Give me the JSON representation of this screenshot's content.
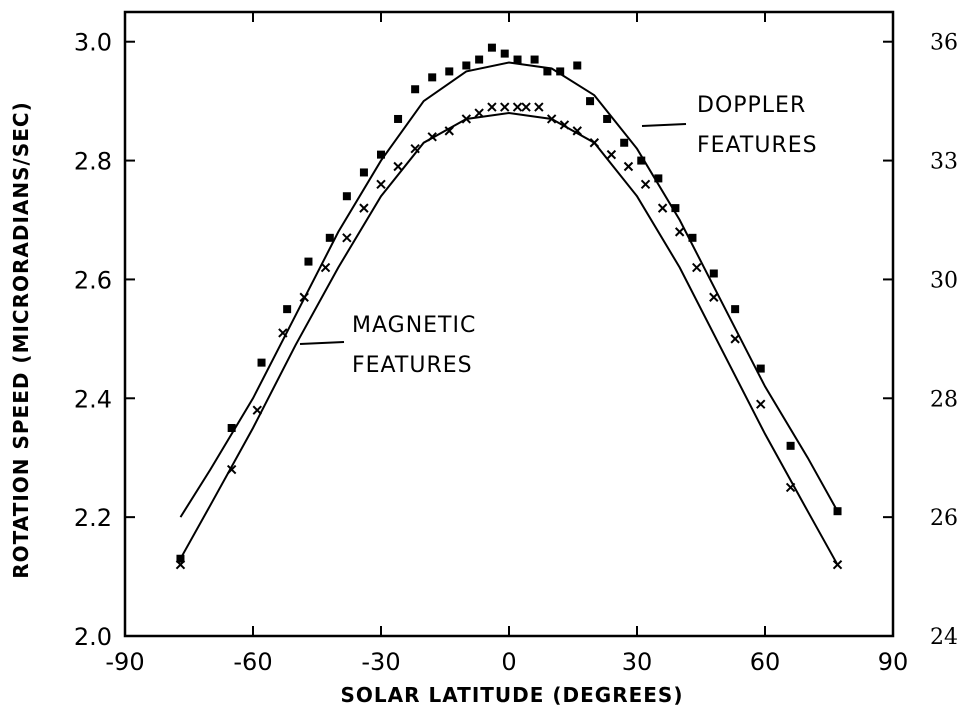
{
  "chart_data": {
    "type": "scatter",
    "xlabel": "SOLAR LATITUDE (DEGREES)",
    "ylabel": "ROTATION SPEED (MICRORADIANS/SEC)",
    "xlim": [
      -90,
      90
    ],
    "ylim": [
      2.0,
      3.05
    ],
    "x_ticks": [
      "-90",
      "-60",
      "-30",
      "0",
      "30",
      "60",
      "90"
    ],
    "y_ticks": [
      "2.0",
      "2.2",
      "2.4",
      "2.6",
      "2.8",
      "3.0"
    ],
    "y_ticks_right": [
      "24",
      "26",
      "28",
      "30",
      "33",
      "36"
    ],
    "grid": false,
    "annotations": [
      {
        "lines": [
          "DOPPLER",
          "FEATURES"
        ]
      },
      {
        "lines": [
          "MAGNETIC",
          "FEATURES"
        ]
      }
    ],
    "series": [
      {
        "marker": "square",
        "points": [
          [
            -77,
            2.13
          ],
          [
            -65,
            2.35
          ],
          [
            -58,
            2.46
          ],
          [
            -52,
            2.55
          ],
          [
            -47,
            2.63
          ],
          [
            -42,
            2.67
          ],
          [
            -38,
            2.74
          ],
          [
            -34,
            2.78
          ],
          [
            -30,
            2.81
          ],
          [
            -26,
            2.87
          ],
          [
            -22,
            2.92
          ],
          [
            -18,
            2.94
          ],
          [
            -14,
            2.95
          ],
          [
            -10,
            2.96
          ],
          [
            -7,
            2.97
          ],
          [
            -4,
            2.99
          ],
          [
            -1,
            2.98
          ],
          [
            2,
            2.97
          ],
          [
            6,
            2.97
          ],
          [
            9,
            2.95
          ],
          [
            12,
            2.95
          ],
          [
            16,
            2.96
          ],
          [
            19,
            2.9
          ],
          [
            23,
            2.87
          ],
          [
            27,
            2.83
          ],
          [
            31,
            2.8
          ],
          [
            35,
            2.77
          ],
          [
            39,
            2.72
          ],
          [
            43,
            2.67
          ],
          [
            48,
            2.61
          ],
          [
            53,
            2.55
          ],
          [
            59,
            2.45
          ],
          [
            66,
            2.32
          ],
          [
            77,
            2.21
          ]
        ],
        "fit": [
          [
            -77,
            2.2
          ],
          [
            -70,
            2.28
          ],
          [
            -60,
            2.4
          ],
          [
            -50,
            2.54
          ],
          [
            -40,
            2.68
          ],
          [
            -30,
            2.8
          ],
          [
            -20,
            2.9
          ],
          [
            -10,
            2.95
          ],
          [
            0,
            2.965
          ],
          [
            10,
            2.955
          ],
          [
            20,
            2.91
          ],
          [
            30,
            2.82
          ],
          [
            40,
            2.7
          ],
          [
            50,
            2.56
          ],
          [
            60,
            2.42
          ],
          [
            70,
            2.3
          ],
          [
            77,
            2.21
          ]
        ]
      },
      {
        "marker": "x",
        "points": [
          [
            -77,
            2.12
          ],
          [
            -65,
            2.28
          ],
          [
            -59,
            2.38
          ],
          [
            -53,
            2.51
          ],
          [
            -48,
            2.57
          ],
          [
            -43,
            2.62
          ],
          [
            -38,
            2.67
          ],
          [
            -34,
            2.72
          ],
          [
            -30,
            2.76
          ],
          [
            -26,
            2.79
          ],
          [
            -22,
            2.82
          ],
          [
            -18,
            2.84
          ],
          [
            -14,
            2.85
          ],
          [
            -10,
            2.87
          ],
          [
            -7,
            2.88
          ],
          [
            -4,
            2.89
          ],
          [
            -1,
            2.89
          ],
          [
            2,
            2.89
          ],
          [
            4,
            2.89
          ],
          [
            7,
            2.89
          ],
          [
            10,
            2.87
          ],
          [
            13,
            2.86
          ],
          [
            16,
            2.85
          ],
          [
            20,
            2.83
          ],
          [
            24,
            2.81
          ],
          [
            28,
            2.79
          ],
          [
            32,
            2.76
          ],
          [
            36,
            2.72
          ],
          [
            40,
            2.68
          ],
          [
            44,
            2.62
          ],
          [
            48,
            2.57
          ],
          [
            53,
            2.5
          ],
          [
            59,
            2.39
          ],
          [
            66,
            2.25
          ],
          [
            77,
            2.12
          ]
        ],
        "fit": [
          [
            -77,
            2.13
          ],
          [
            -70,
            2.22
          ],
          [
            -60,
            2.35
          ],
          [
            -50,
            2.49
          ],
          [
            -40,
            2.62
          ],
          [
            -30,
            2.74
          ],
          [
            -20,
            2.83
          ],
          [
            -10,
            2.87
          ],
          [
            0,
            2.88
          ],
          [
            10,
            2.87
          ],
          [
            20,
            2.83
          ],
          [
            30,
            2.74
          ],
          [
            40,
            2.62
          ],
          [
            50,
            2.48
          ],
          [
            60,
            2.34
          ],
          [
            70,
            2.21
          ],
          [
            77,
            2.12
          ]
        ]
      }
    ]
  }
}
